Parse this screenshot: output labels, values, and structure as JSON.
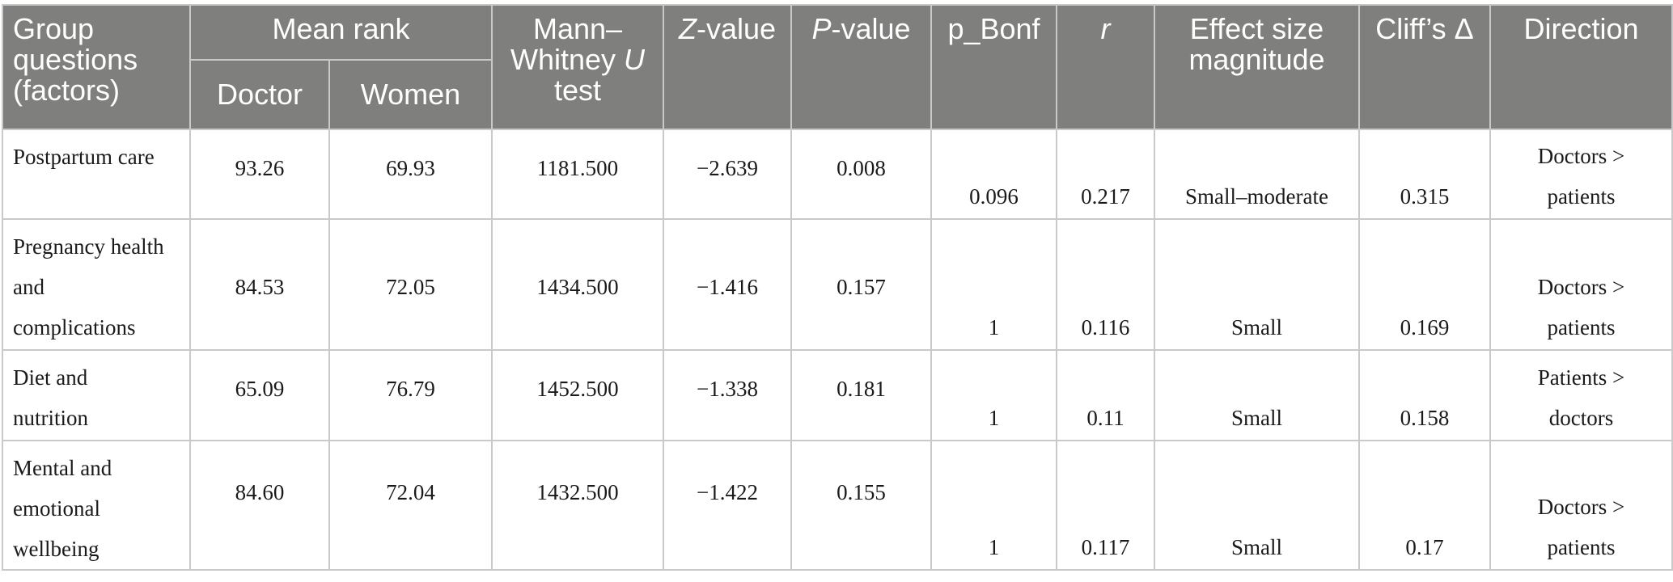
{
  "headers": {
    "group": [
      "Group",
      "questions",
      "(factors)"
    ],
    "mean_rank": "Mean rank",
    "doctor": "Doctor",
    "women": "Women",
    "mann": [
      "Mann–",
      "Whitney ",
      "U",
      "test"
    ],
    "z_italic": "Z",
    "z_suffix": "-value",
    "p_italic": "P",
    "p_suffix": "-value",
    "p_bonf": "p_Bonf",
    "r": "r",
    "effect": [
      "Effect size",
      "magnitude"
    ],
    "cliffs": "Cliff’s Δ",
    "direction": "Direction"
  },
  "rows": [
    {
      "label": [
        "Postpartum care"
      ],
      "doctor": "93.26",
      "women": "69.93",
      "u": "1181.500",
      "z": "−2.639",
      "p": "0.008",
      "p_bonf": "0.096",
      "r": "0.217",
      "effect": "Small–moderate",
      "cliffs": "0.315",
      "direction": [
        "Doctors >",
        "patients"
      ]
    },
    {
      "label": [
        "Pregnancy health",
        "and",
        "complications"
      ],
      "doctor": "84.53",
      "women": "72.05",
      "u": "1434.500",
      "z": "−1.416",
      "p": "0.157",
      "p_bonf": "1",
      "r": "0.116",
      "effect": "Small",
      "cliffs": "0.169",
      "direction": [
        "Doctors >",
        "patients"
      ]
    },
    {
      "label": [
        "Diet and",
        "nutrition"
      ],
      "doctor": "65.09",
      "women": "76.79",
      "u": "1452.500",
      "z": "−1.338",
      "p": "0.181",
      "p_bonf": "1",
      "r": "0.11",
      "effect": "Small",
      "cliffs": "0.158",
      "direction": [
        "Patients >",
        "doctors"
      ]
    },
    {
      "label": [
        "Mental and",
        "emotional",
        "wellbeing"
      ],
      "doctor": "84.60",
      "women": "72.04",
      "u": "1432.500",
      "z": "−1.422",
      "p": "0.155",
      "p_bonf": "1",
      "r": "0.117",
      "effect": "Small",
      "cliffs": "0.17",
      "direction": [
        "Doctors >",
        "patients"
      ]
    }
  ]
}
